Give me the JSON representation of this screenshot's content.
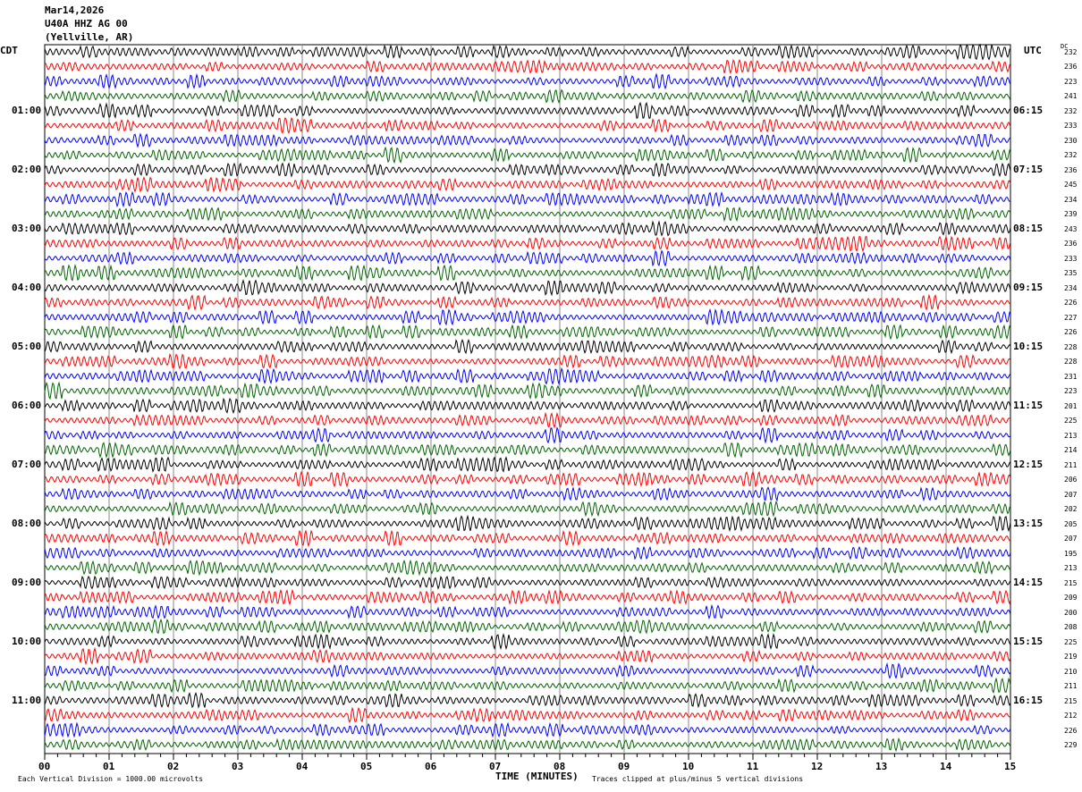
{
  "header": {
    "date": "Mar14,2026",
    "station": "U40A HHZ AG 00",
    "location": "(Yellville, AR)"
  },
  "left_tz": "CDT",
  "right_tz": "UTC",
  "dc_label": "DC",
  "footer": {
    "scale": "Each Vertical Division = 1000.00 microvolts",
    "xlabel": "TIME (MINUTES)",
    "clip": "Traces clipped at plus/minus 5 vertical divisions"
  },
  "chart_data": {
    "type": "line",
    "subtype": "helicorder",
    "xlabel": "TIME (MINUTES)",
    "xlim": [
      0,
      15
    ],
    "x_ticks": [
      "00",
      "01",
      "02",
      "03",
      "04",
      "05",
      "06",
      "07",
      "08",
      "09",
      "10",
      "11",
      "12",
      "13",
      "14",
      "15"
    ],
    "grid": "vertical lines every minute",
    "trace_colors": [
      "#000000",
      "#ff0000",
      "#0000ff",
      "#006400"
    ],
    "trace_count": 48,
    "left_time_labels": [
      "01:00",
      "02:00",
      "03:00",
      "04:00",
      "05:00",
      "06:00",
      "07:00",
      "08:00",
      "09:00",
      "10:00",
      "11:00"
    ],
    "right_time_labels": [
      "06:15",
      "07:15",
      "08:15",
      "09:15",
      "10:15",
      "11:15",
      "12:15",
      "13:15",
      "14:15",
      "15:15",
      "16:15"
    ],
    "dc_offsets": [
      232,
      236,
      223,
      241,
      232,
      233,
      230,
      232,
      236,
      245,
      234,
      239,
      243,
      236,
      233,
      235,
      234,
      226,
      227,
      226,
      228,
      228,
      231,
      223,
      201,
      225,
      213,
      214,
      211,
      206,
      207,
      202,
      205,
      207,
      195,
      213,
      215,
      209,
      200,
      208,
      225,
      219,
      210,
      211,
      215,
      212,
      226,
      229
    ]
  }
}
